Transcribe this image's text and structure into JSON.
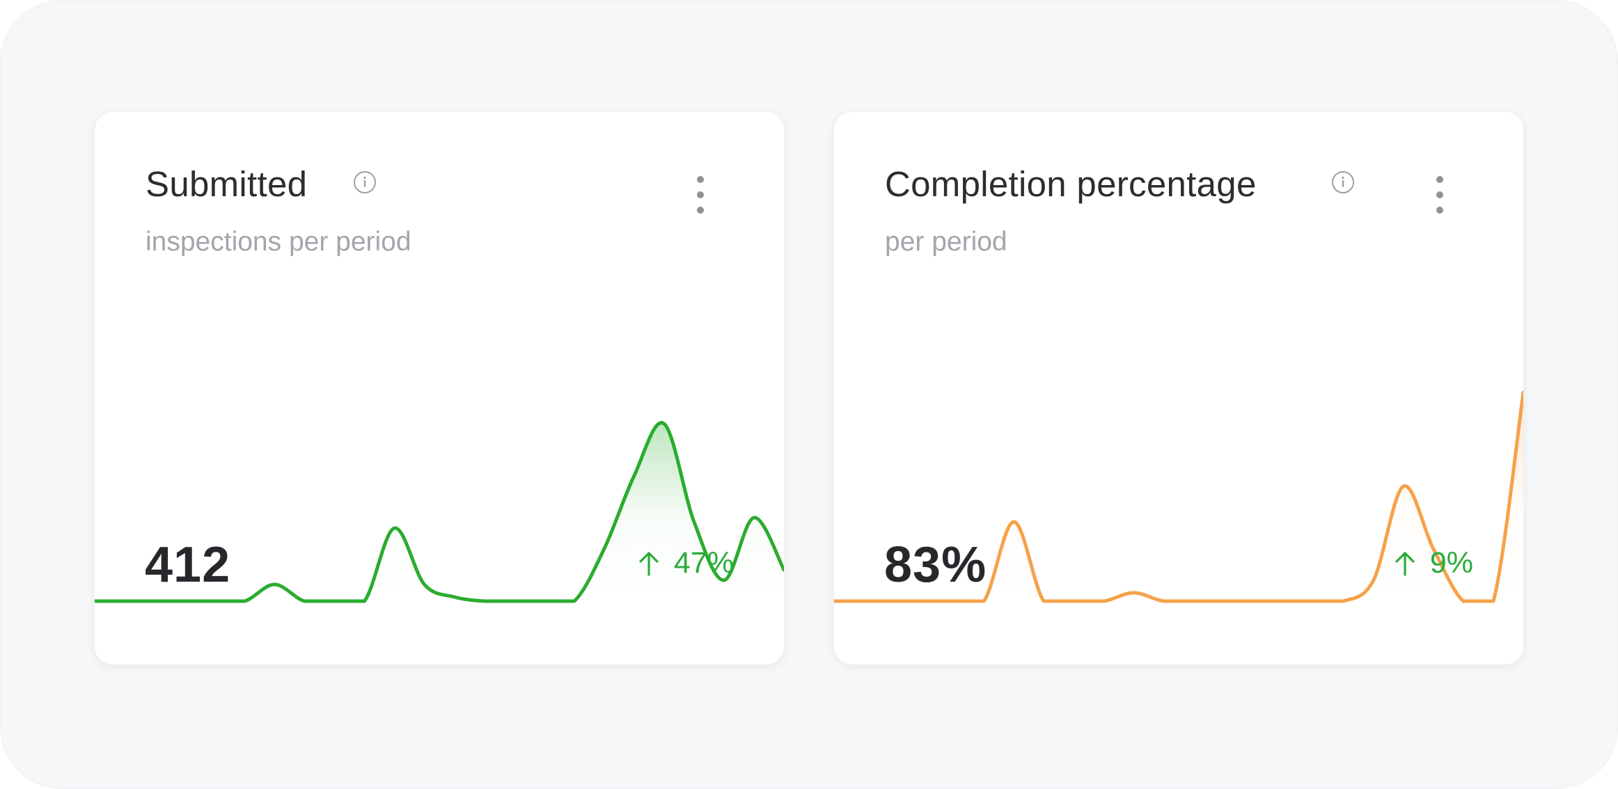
{
  "cards": [
    {
      "title": "Submitted",
      "subtitle": "inspections per period",
      "value": "412",
      "delta": "47%",
      "delta_direction": "up",
      "accent_color": "#2aac2e",
      "delta_color": "#2aac3a",
      "icons": {
        "info": "info-circle-icon",
        "menu": "kebab-menu-icon",
        "delta": "arrow-up-icon"
      },
      "chart_data": {
        "type": "area",
        "values": [
          0,
          0,
          0,
          0,
          0,
          0,
          0.08,
          0,
          0,
          0,
          0.35,
          0.08,
          0.02,
          0,
          0,
          0,
          0,
          0.25,
          0.6,
          0.85,
          0.38,
          0.1,
          0.4,
          0.15
        ]
      }
    },
    {
      "title": "Completion percentage",
      "subtitle": "per period",
      "value": "83%",
      "delta": "9%",
      "delta_direction": "up",
      "accent_color": "#f5a24a",
      "delta_color": "#2aac3a",
      "icons": {
        "info": "info-circle-icon",
        "menu": "kebab-menu-icon",
        "delta": "arrow-up-icon"
      },
      "chart_data": {
        "type": "area",
        "values": [
          0,
          0,
          0,
          0,
          0,
          0,
          0.38,
          0,
          0,
          0,
          0.04,
          0,
          0,
          0,
          0,
          0,
          0,
          0,
          0.1,
          0.55,
          0.25,
          0,
          0,
          1.0
        ]
      }
    }
  ]
}
